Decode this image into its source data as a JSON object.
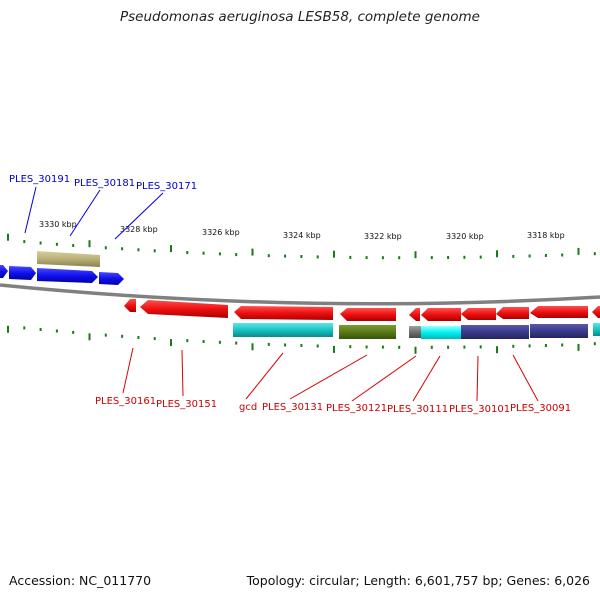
{
  "title": "Pseudomonas aeruginosa LESB58, complete genome",
  "footer": {
    "accession": "Accession: NC_011770",
    "summary": "Topology: circular; Length: 6,601,757 bp; Genes: 6,026"
  },
  "colors": {
    "forward_gene": "#0a0ae6",
    "reverse_gene": "#e60a0a",
    "backbone": "#808080",
    "tick": "#1a7a1a",
    "teal_feature": "#1bc6c6",
    "olive_feature": "#5a7a1a",
    "khaki_feature": "#b8b078",
    "navy_feature": "#3a3a8a",
    "cyan_feature": "#00ffff"
  },
  "scale_labels": [
    "3330 kbp",
    "3328 kbp",
    "3326 kbp",
    "3324 kbp",
    "3322 kbp",
    "3320 kbp",
    "3318 kbp"
  ],
  "forward_labels": [
    "PLES_30191",
    "PLES_30181",
    "PLES_30171"
  ],
  "reverse_labels": [
    "PLES_30161",
    "PLES_30151",
    "gcd",
    "PLES_30131",
    "PLES_30121",
    "PLES_30111",
    "PLES_30101",
    "PLES_30091"
  ]
}
